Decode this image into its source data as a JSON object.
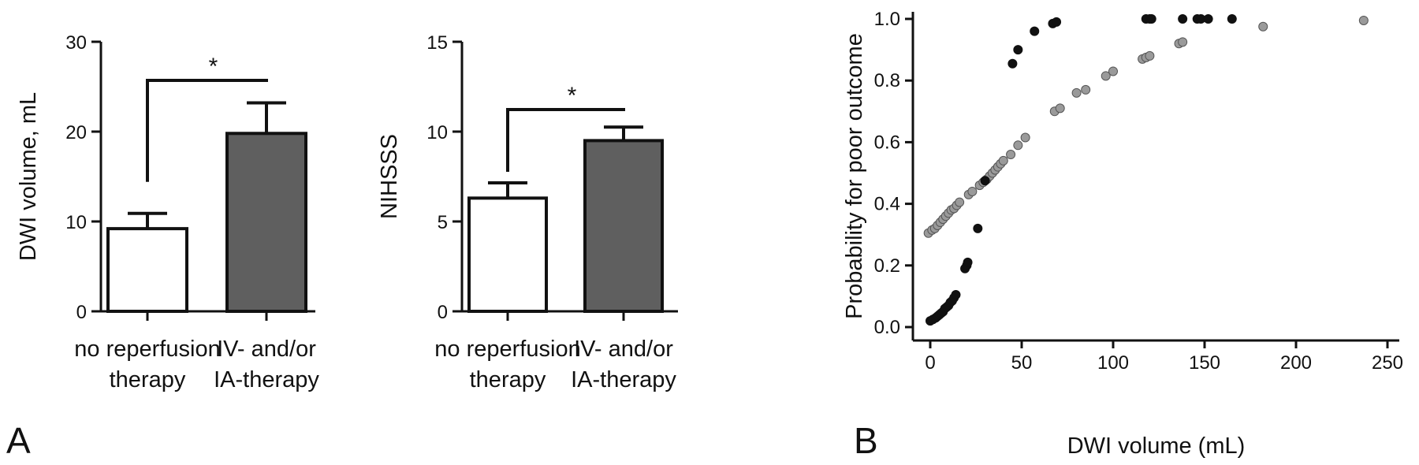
{
  "panel_labels": {
    "a": "A",
    "b": "B"
  },
  "chart_data": [
    {
      "type": "bar",
      "categories": [
        "no reperfusion therapy",
        "IV- and/or IA-therapy"
      ],
      "category_lines": [
        [
          "no reperfusion",
          "therapy"
        ],
        [
          "IV- and/or",
          "IA-therapy"
        ]
      ],
      "values": [
        9.2,
        19.8
      ],
      "errors": [
        1.7,
        3.4
      ],
      "bar_colors": [
        "#ffffff",
        "#5f5f5f"
      ],
      "ylabel": "DWI volume, mL",
      "ylim": [
        0,
        30
      ],
      "yticks": [
        0,
        10,
        20,
        30
      ],
      "significance": "*"
    },
    {
      "type": "bar",
      "categories": [
        "no reperfusion therapy",
        "IV- and/or IA-therapy"
      ],
      "category_lines": [
        [
          "no reperfusion",
          "therapy"
        ],
        [
          "IV- and/or",
          "IA-therapy"
        ]
      ],
      "values": [
        6.3,
        9.5
      ],
      "errors": [
        0.85,
        0.75
      ],
      "bar_colors": [
        "#ffffff",
        "#5f5f5f"
      ],
      "ylabel": "NIHSSS",
      "ylim": [
        0,
        15
      ],
      "yticks": [
        0,
        5,
        10,
        15
      ],
      "significance": "*"
    },
    {
      "type": "scatter",
      "xlabel": "DWI volume (mL)",
      "ylabel": "Probability for poor outcome",
      "xlim": [
        -5,
        255
      ],
      "ylim": [
        -0.02,
        1.04
      ],
      "xticks": [
        0,
        50,
        100,
        150,
        200,
        250
      ],
      "yticks": [
        "0.0",
        "0.2",
        "0.4",
        "0.6",
        "0.8",
        "1.0"
      ],
      "series": [
        {
          "color": "#111111",
          "points": [
            [
              0,
              0.02
            ],
            [
              1.5,
              0.025
            ],
            [
              3,
              0.03
            ],
            [
              4,
              0.035
            ],
            [
              5,
              0.04
            ],
            [
              6,
              0.045
            ],
            [
              7,
              0.05
            ],
            [
              8,
              0.06
            ],
            [
              9,
              0.065
            ],
            [
              10,
              0.07
            ],
            [
              11,
              0.08
            ],
            [
              12,
              0.085
            ],
            [
              13,
              0.095
            ],
            [
              14,
              0.105
            ],
            [
              19,
              0.19
            ],
            [
              20,
              0.2
            ],
            [
              20.5,
              0.21
            ],
            [
              26,
              0.32
            ],
            [
              30,
              0.475
            ],
            [
              45,
              0.855
            ],
            [
              48,
              0.9
            ],
            [
              57,
              0.96
            ],
            [
              67,
              0.985
            ],
            [
              69,
              0.99
            ],
            [
              118,
              1.0
            ],
            [
              120,
              1.0
            ],
            [
              121,
              1.0
            ],
            [
              138,
              1.0
            ],
            [
              146,
              1.0
            ],
            [
              148,
              1.0
            ],
            [
              152,
              1.0
            ],
            [
              165,
              1.0
            ]
          ]
        },
        {
          "color": "#9a9a9a",
          "points": [
            [
              -1,
              0.305
            ],
            [
              1,
              0.315
            ],
            [
              2.5,
              0.32
            ],
            [
              4,
              0.33
            ],
            [
              5.5,
              0.34
            ],
            [
              7,
              0.35
            ],
            [
              8.5,
              0.36
            ],
            [
              10,
              0.37
            ],
            [
              11.5,
              0.38
            ],
            [
              13,
              0.385
            ],
            [
              14.5,
              0.395
            ],
            [
              16,
              0.405
            ],
            [
              21,
              0.43
            ],
            [
              23,
              0.44
            ],
            [
              27,
              0.46
            ],
            [
              29,
              0.47
            ],
            [
              31,
              0.48
            ],
            [
              32.5,
              0.49
            ],
            [
              34,
              0.5
            ],
            [
              35.5,
              0.51
            ],
            [
              37,
              0.52
            ],
            [
              38.5,
              0.53
            ],
            [
              40,
              0.54
            ],
            [
              44,
              0.56
            ],
            [
              48,
              0.59
            ],
            [
              52,
              0.615
            ],
            [
              68,
              0.7
            ],
            [
              71,
              0.71
            ],
            [
              80,
              0.76
            ],
            [
              85,
              0.77
            ],
            [
              96,
              0.815
            ],
            [
              100,
              0.83
            ],
            [
              116,
              0.87
            ],
            [
              118,
              0.875
            ],
            [
              120,
              0.88
            ],
            [
              136,
              0.92
            ],
            [
              138,
              0.925
            ],
            [
              182,
              0.975
            ],
            [
              237,
              0.995
            ]
          ]
        }
      ]
    }
  ]
}
